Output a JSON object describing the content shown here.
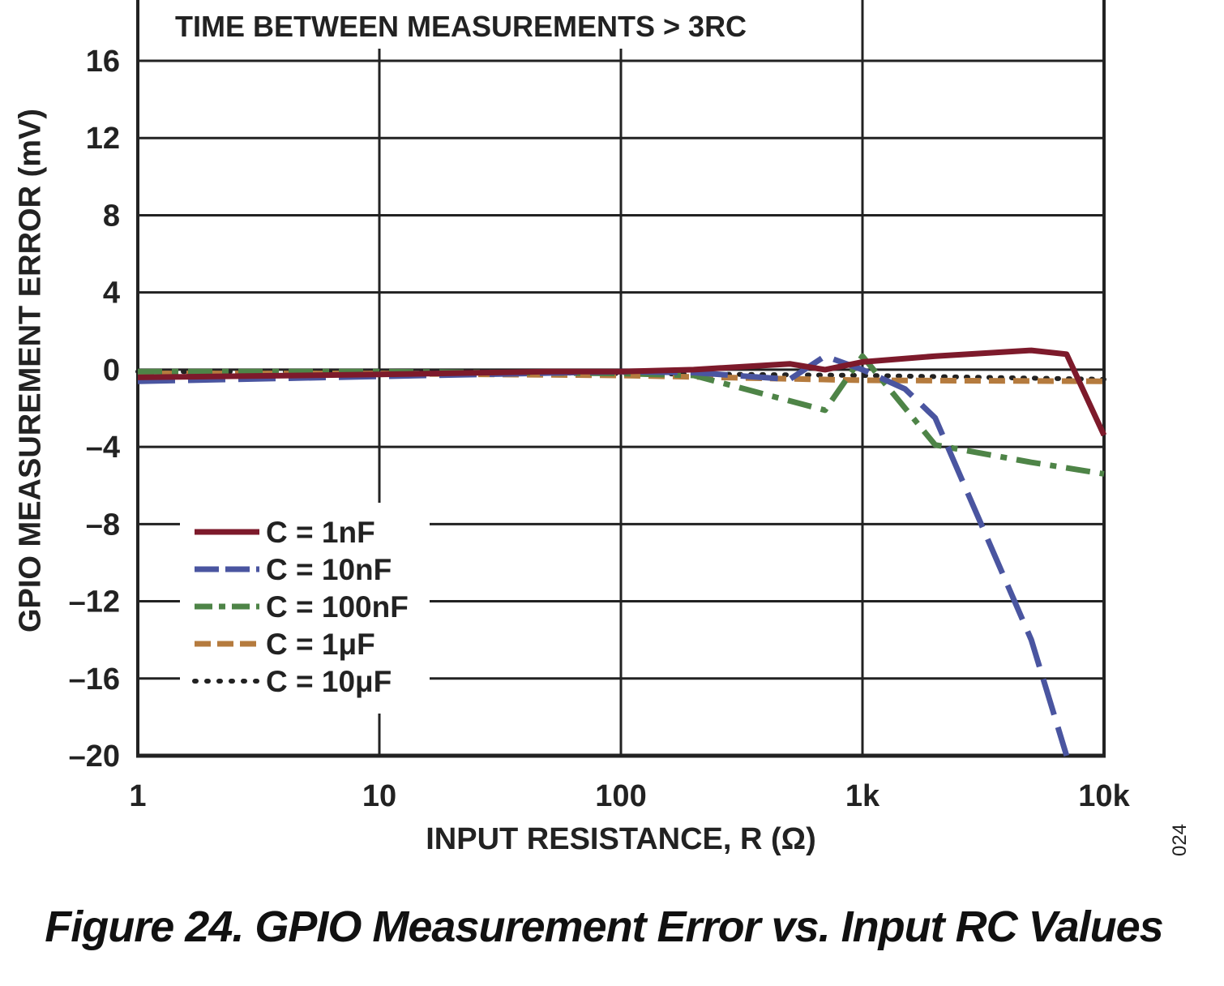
{
  "caption": "Figure 24. GPIO Measurement Error vs. Input RC Values",
  "figure_id": "024",
  "colors": {
    "c1nF": "#7d1a2b",
    "c10nF": "#4a55a0",
    "c100nF": "#4e8447",
    "c1uF": "#b57b3e",
    "c10uF": "#222222",
    "grid": "#222222"
  },
  "chart_data": {
    "type": "line",
    "title": "",
    "annotation": "TIME BETWEEN MEASUREMENTS > 3RC",
    "xlabel": "INPUT RESISTANCE, R (Ω)",
    "ylabel": "GPIO MEASUREMENT ERROR (mV)",
    "xscale": "log",
    "xlim": [
      1,
      10000
    ],
    "ylim": [
      -20,
      16
    ],
    "xticks": [
      1,
      10,
      100,
      1000,
      10000
    ],
    "xtick_labels": [
      "1",
      "10",
      "100",
      "1k",
      "10k"
    ],
    "yticks": [
      16,
      12,
      8,
      4,
      0,
      -4,
      -8,
      -12,
      -16,
      -20
    ],
    "ytick_labels": [
      "16",
      "12",
      "8",
      "4",
      "0",
      "–4",
      "–8",
      "–12",
      "–16",
      "–20"
    ],
    "grid": true,
    "legend_position": "bottom-left",
    "series": [
      {
        "name": "C = 1nF",
        "style": "solid",
        "x": [
          1,
          10,
          50,
          100,
          200,
          500,
          700,
          1000,
          2000,
          5000,
          7000,
          10000
        ],
        "y": [
          -0.4,
          -0.25,
          -0.1,
          -0.1,
          0.0,
          0.3,
          0.0,
          0.4,
          0.7,
          1.0,
          0.8,
          -3.4
        ]
      },
      {
        "name": "C = 10nF",
        "style": "longdash",
        "x": [
          1,
          10,
          100,
          200,
          500,
          700,
          1000,
          1500,
          2000,
          5000,
          7000
        ],
        "y": [
          -0.6,
          -0.35,
          -0.1,
          -0.15,
          -0.5,
          0.7,
          0.0,
          -1.0,
          -2.5,
          -14.0,
          -20.0
        ]
      },
      {
        "name": "C = 100nF",
        "style": "dashdot",
        "x": [
          1,
          10,
          100,
          200,
          700,
          1000,
          2000,
          5000,
          10000
        ],
        "y": [
          -0.1,
          -0.1,
          -0.2,
          -0.3,
          -2.1,
          0.7,
          -3.9,
          -4.8,
          -5.4
        ]
      },
      {
        "name": "C = 1μF",
        "style": "dash",
        "x": [
          1,
          10,
          100,
          1000,
          10000
        ],
        "y": [
          -0.2,
          -0.2,
          -0.3,
          -0.55,
          -0.6
        ]
      },
      {
        "name": "C = 10μF",
        "style": "dot",
        "x": [
          1,
          10,
          100,
          1000,
          10000
        ],
        "y": [
          -0.1,
          -0.1,
          -0.2,
          -0.3,
          -0.5
        ]
      }
    ]
  }
}
